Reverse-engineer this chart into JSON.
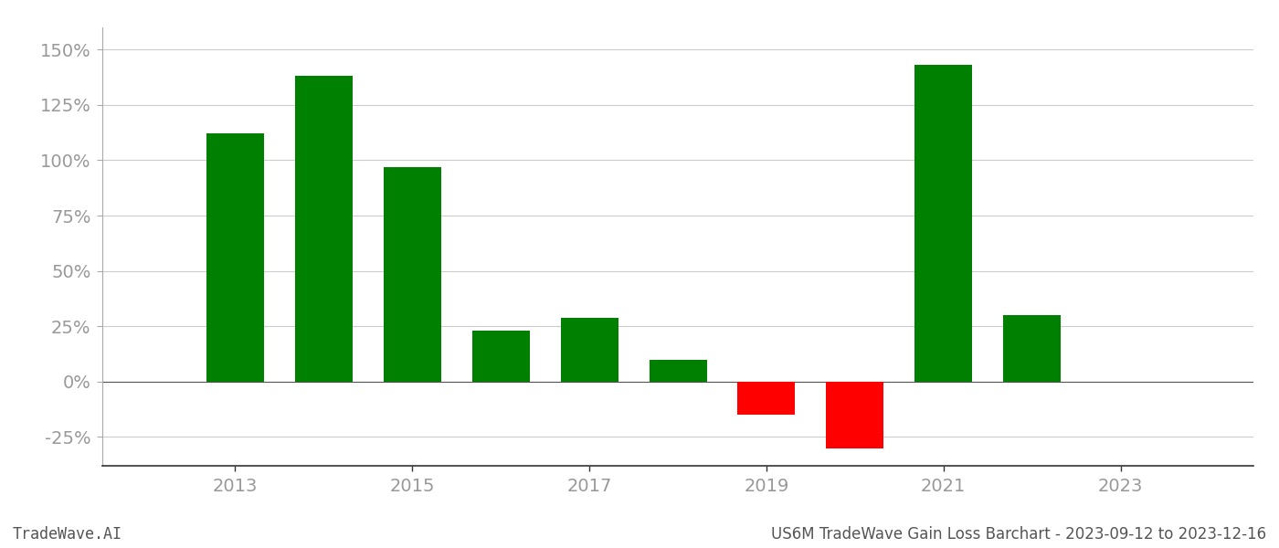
{
  "years": [
    2013,
    2014,
    2015,
    2016,
    2017,
    2018,
    2019,
    2020,
    2021,
    2022
  ],
  "values": [
    112,
    138,
    97,
    23,
    29,
    10,
    -15,
    -30,
    143,
    30
  ],
  "colors": [
    "#008000",
    "#008000",
    "#008000",
    "#008000",
    "#008000",
    "#008000",
    "#ff0000",
    "#ff0000",
    "#008000",
    "#008000"
  ],
  "title": "US6M TradeWave Gain Loss Barchart - 2023-09-12 to 2023-12-16",
  "watermark": "TradeWave.AI",
  "ylim": [
    -38,
    160
  ],
  "yticks": [
    -25,
    0,
    25,
    50,
    75,
    100,
    125,
    150
  ],
  "xticks": [
    2013,
    2015,
    2017,
    2019,
    2021,
    2023
  ],
  "xlim": [
    2011.5,
    2024.5
  ],
  "background_color": "#ffffff",
  "grid_color": "#cccccc",
  "bar_width": 0.65,
  "tick_color": "#999999",
  "label_fontsize": 14,
  "footer_fontsize": 12
}
